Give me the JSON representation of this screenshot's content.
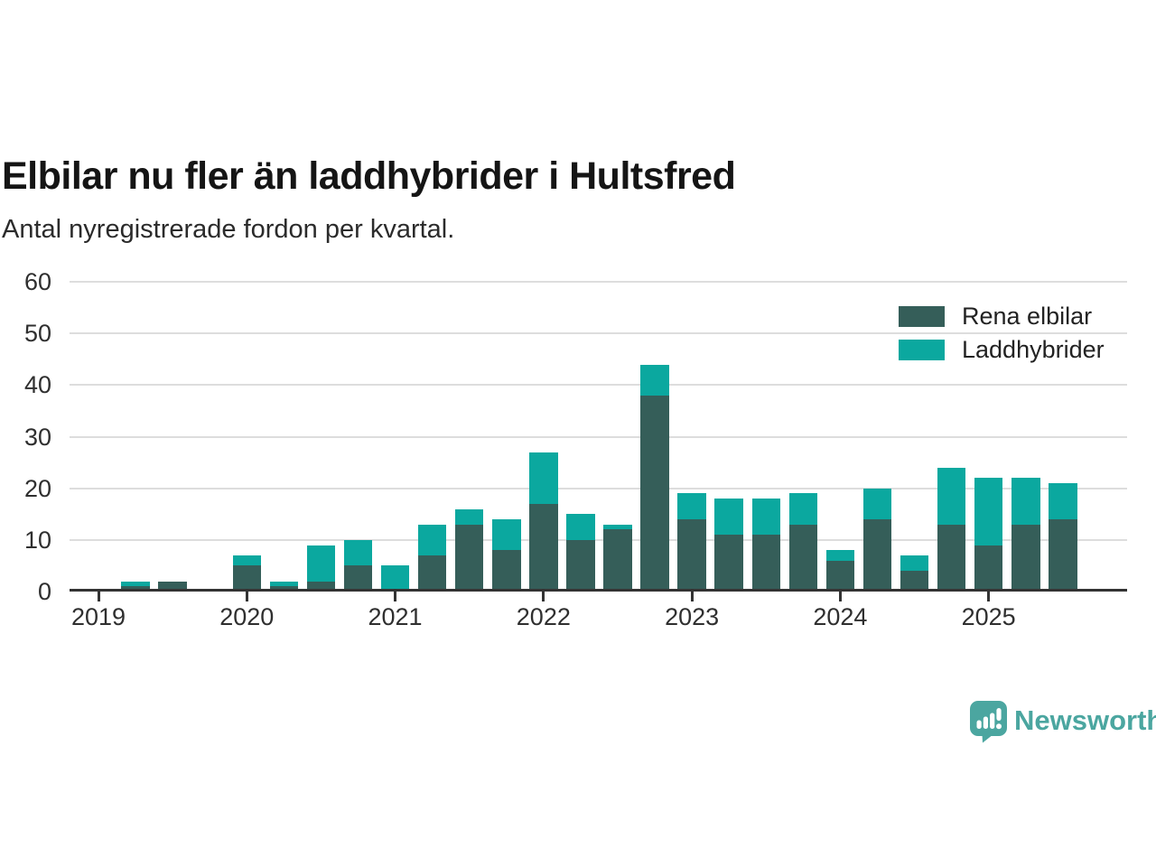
{
  "header": {
    "title": "Elbilar nu fler än laddhybrider i Hultsfred",
    "subtitle": "Antal nyregistrerade fordon per kvartal."
  },
  "chart_data": {
    "type": "bar",
    "stacked": true,
    "title": "Elbilar nu fler än laddhybrider i Hultsfred",
    "subtitle": "Antal nyregistrerade fordon per kvartal.",
    "categories": [
      "2019 Q1",
      "2019 Q2",
      "2019 Q3",
      "2019 Q4",
      "2020 Q1",
      "2020 Q2",
      "2020 Q3",
      "2020 Q4",
      "2021 Q1",
      "2021 Q2",
      "2021 Q3",
      "2021 Q4",
      "2022 Q1",
      "2022 Q2",
      "2022 Q3",
      "2022 Q4",
      "2023 Q1",
      "2023 Q2",
      "2023 Q3",
      "2023 Q4",
      "2024 Q1",
      "2024 Q2",
      "2024 Q3",
      "2024 Q4",
      "2025 Q1",
      "2025 Q2",
      "2025 Q3"
    ],
    "series": [
      {
        "name": "Rena elbilar",
        "color": "#355e59",
        "values": [
          0,
          1,
          2,
          0,
          5,
          1,
          2,
          5,
          0,
          7,
          13,
          8,
          17,
          10,
          12,
          38,
          14,
          11,
          11,
          13,
          6,
          14,
          4,
          13,
          9,
          13,
          14
        ]
      },
      {
        "name": "Laddhybrider",
        "color": "#0ba89f",
        "values": [
          0,
          1,
          0,
          0,
          2,
          1,
          7,
          5,
          5,
          6,
          3,
          6,
          10,
          5,
          1,
          6,
          5,
          7,
          7,
          6,
          2,
          6,
          3,
          11,
          13,
          9,
          7
        ]
      }
    ],
    "totals": [
      0,
      2,
      2,
      0,
      7,
      2,
      9,
      10,
      5,
      13,
      16,
      14,
      27,
      15,
      13,
      44,
      19,
      18,
      18,
      19,
      8,
      20,
      7,
      24,
      22,
      22,
      21
    ],
    "xlabel": "",
    "ylabel": "",
    "ylim": [
      0,
      60
    ],
    "yticks": [
      0,
      10,
      20,
      30,
      40,
      50,
      60
    ],
    "year_labels": [
      "2019",
      "2020",
      "2021",
      "2022",
      "2023",
      "2024",
      "2025"
    ],
    "grid": true,
    "legend_position": "top-right",
    "axis_color": "#333333",
    "gridline_color": "#dddddd"
  },
  "branding": {
    "logo_text": "Newsworthy",
    "logo_color": "#4ba6a0",
    "logo_icon": "speech-bubble-bar-chart-icon"
  }
}
